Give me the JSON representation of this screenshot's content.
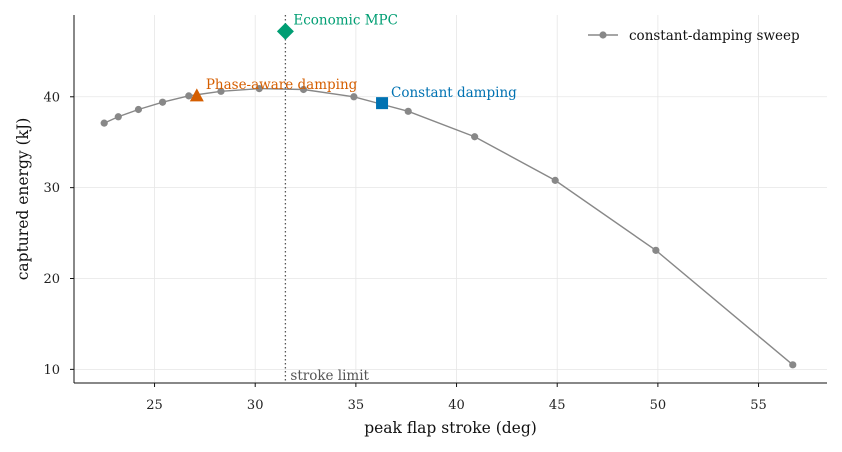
{
  "chart_data": {
    "type": "scatter",
    "xlabel": "peak flap stroke (deg)",
    "ylabel": "captured energy (kJ)",
    "xlim": [
      21.0,
      58.4
    ],
    "ylim": [
      8.5,
      49.0
    ],
    "xticks": [
      25,
      30,
      35,
      40,
      45,
      50,
      55
    ],
    "yticks": [
      10,
      20,
      30,
      40
    ],
    "grid": true,
    "legend_position": "top-right",
    "colors": {
      "sweep": "#888888",
      "phase_aware": "#d55e00",
      "constant": "#0072b2",
      "mpc": "#009e73",
      "limit": "#555555"
    },
    "series": [
      {
        "name": "constant-damping sweep",
        "x": [
          22.5,
          23.2,
          24.2,
          25.4,
          26.7,
          28.3,
          30.2,
          32.4,
          34.9,
          37.6,
          40.9,
          44.9,
          49.9,
          56.7
        ],
        "y": [
          37.1,
          37.8,
          38.6,
          39.4,
          40.1,
          40.6,
          40.9,
          40.8,
          40.0,
          38.4,
          35.6,
          30.8,
          23.1,
          10.5
        ]
      }
    ],
    "highlights": [
      {
        "label": "Phase-aware damping",
        "marker": "triangle",
        "x": 27.1,
        "y": 40.1
      },
      {
        "label": "Constant damping",
        "marker": "square",
        "x": 36.3,
        "y": 39.3
      },
      {
        "label": "Economic MPC",
        "marker": "diamond",
        "x": 31.5,
        "y": 47.2
      }
    ],
    "reference_line": {
      "label": "stroke limit",
      "x": 31.5,
      "style": "dotted"
    }
  }
}
